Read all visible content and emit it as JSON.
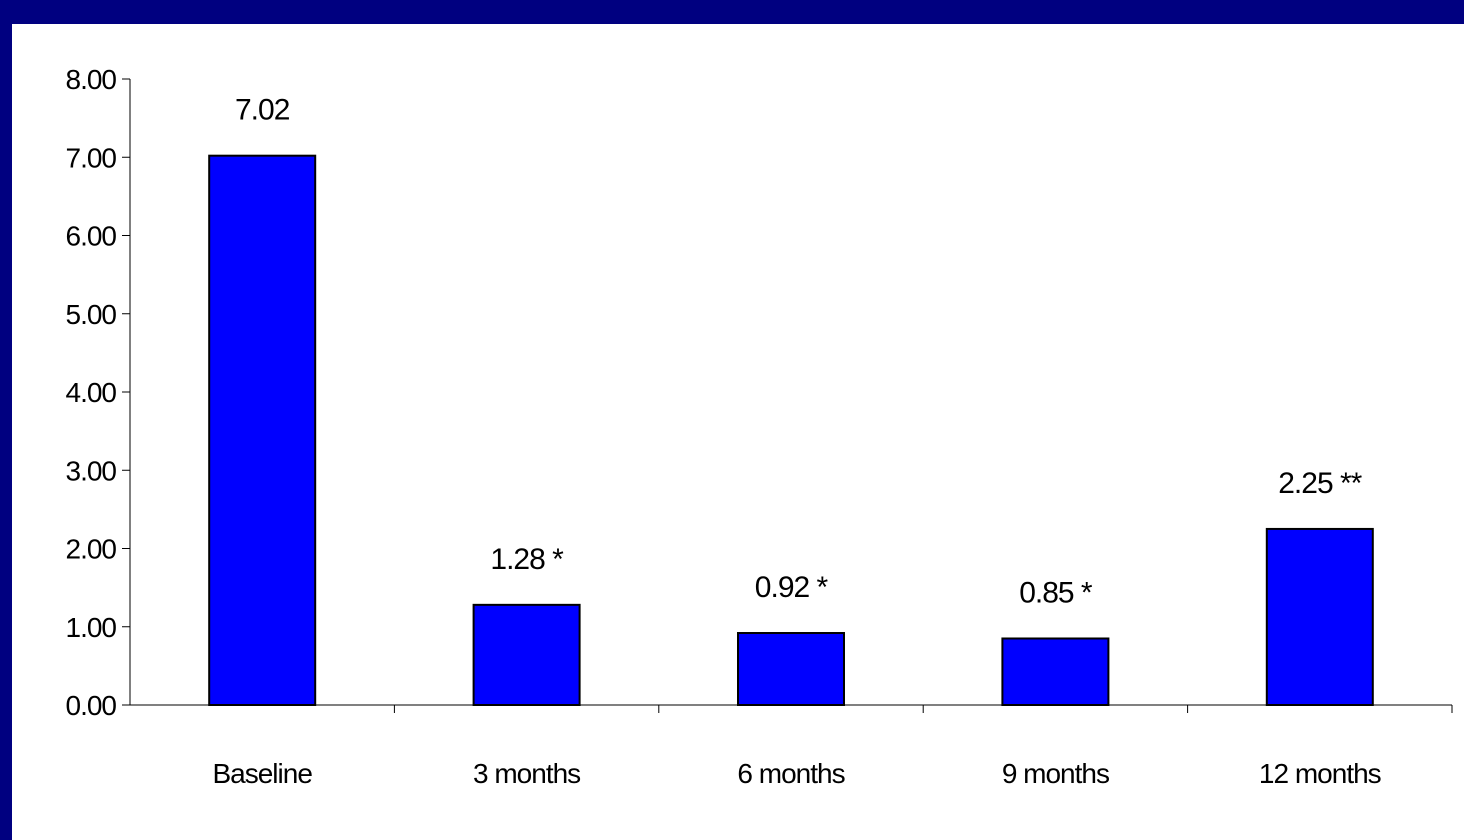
{
  "colors": {
    "bar_fill": "#0000FF",
    "bar_stroke": "#000000",
    "slide_border": "#000080",
    "background": "#FFFFFF"
  },
  "chart_data": {
    "type": "bar",
    "categories": [
      "Baseline",
      "3 months",
      "6 months",
      "9 months",
      "12 months"
    ],
    "values": [
      7.02,
      1.28,
      0.92,
      0.85,
      2.25
    ],
    "data_labels": [
      "7.02",
      "1.28 *",
      "0.92 *",
      "0.85 *",
      "2.25 **"
    ],
    "y_ticks": [
      "0.00",
      "1.00",
      "2.00",
      "3.00",
      "4.00",
      "5.00",
      "6.00",
      "7.00",
      "8.00"
    ],
    "ylim": [
      0,
      8
    ],
    "title": "",
    "xlabel": "",
    "ylabel": "",
    "grid": false,
    "legend": "none"
  }
}
